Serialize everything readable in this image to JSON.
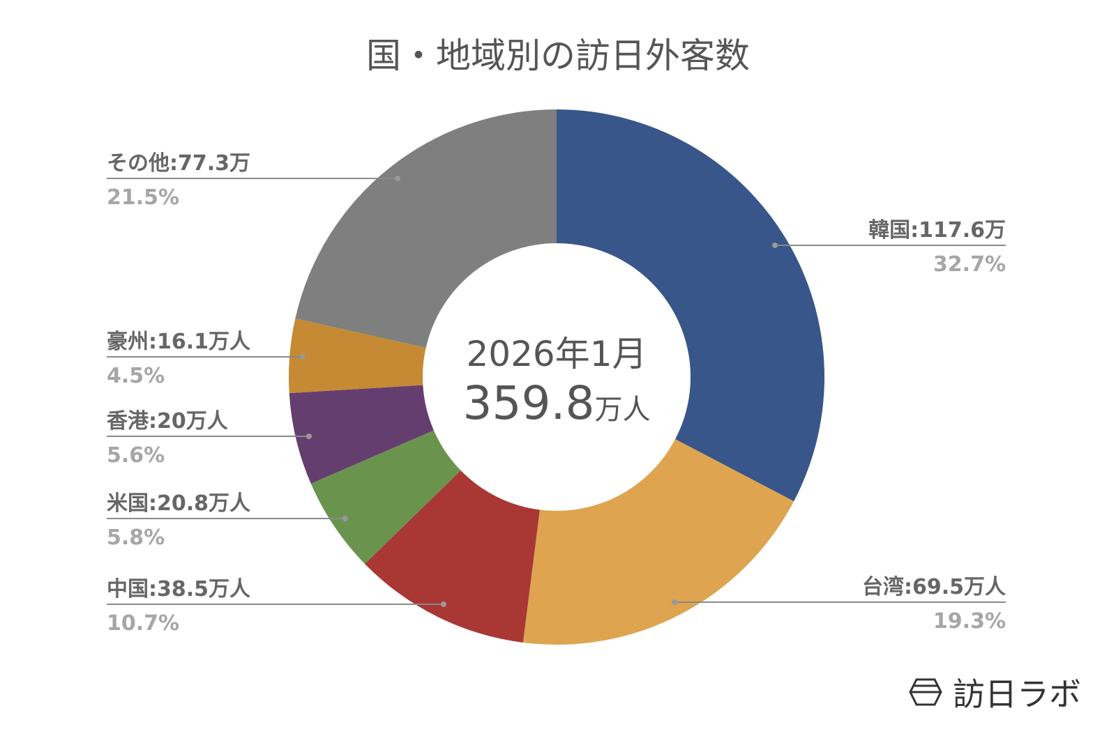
{
  "chart_data": {
    "type": "pie",
    "donut": true,
    "title": "国・地域別の訪日外客数",
    "center_text": {
      "period": "2026年1月",
      "total": "359.8",
      "total_unit": "万人"
    },
    "categories": [
      "韓国",
      "台湾",
      "中国",
      "米国",
      "香港",
      "豪州",
      "その他"
    ],
    "values": [
      117.6,
      69.5,
      38.5,
      20.8,
      20,
      16.1,
      77.3
    ],
    "labels": [
      "韓国:117.6万",
      "台湾:69.5万人",
      "中国:38.5万人",
      "米国:20.8万人",
      "香港:20万人",
      "豪州:16.1万人",
      "その他:77.3万"
    ],
    "percents": [
      "32.7%",
      "19.3%",
      "10.7%",
      "5.8%",
      "5.6%",
      "4.5%",
      "21.5%"
    ],
    "colors": [
      "#385689",
      "#DEA44F",
      "#A93734",
      "#6A944E",
      "#653E70",
      "#C58A33",
      "#7E7F7E"
    ],
    "unit": "万人"
  },
  "logo": {
    "text": "訪日ラボ",
    "icon": "hexagon-logo-icon"
  }
}
